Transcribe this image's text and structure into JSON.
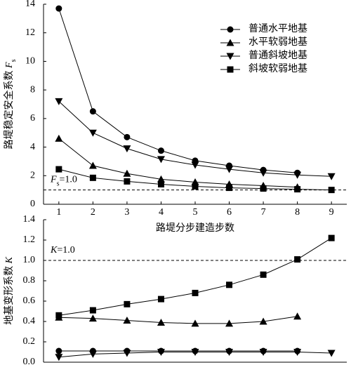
{
  "chart_data": [
    {
      "type": "line",
      "ylabel": [
        "路堤稳定安全系数 ",
        "F",
        "s"
      ],
      "xlabel": "路堤分步建造步数",
      "x": [
        1,
        2,
        3,
        4,
        5,
        6,
        7,
        8,
        9
      ],
      "xlim": [
        0.55,
        9.45
      ],
      "xticks": [
        1,
        2,
        3,
        4,
        5,
        6,
        7,
        8,
        9
      ],
      "ylim": [
        0,
        14
      ],
      "yticks": [
        0,
        2,
        4,
        6,
        8,
        10,
        12,
        14
      ],
      "legend": "upper-right",
      "reference_line": {
        "value": 1.0,
        "label": [
          "F",
          "s",
          "=1.0"
        ]
      },
      "series": [
        {
          "name": "普通水平地基",
          "color": "#000000",
          "marker": "circle",
          "values": [
            13.7,
            6.5,
            4.7,
            3.75,
            3.05,
            2.7,
            2.4,
            2.2,
            null
          ]
        },
        {
          "name": "水平软弱地基",
          "color": "#000000",
          "marker": "triangle-up",
          "values": [
            4.6,
            2.7,
            2.15,
            1.75,
            1.55,
            1.4,
            1.3,
            1.2,
            null
          ]
        },
        {
          "name": "普通斜坡地基",
          "color": "#000000",
          "marker": "triangle-down",
          "values": [
            7.2,
            5.0,
            3.9,
            3.15,
            2.75,
            2.45,
            2.2,
            2.05,
            1.95
          ]
        },
        {
          "name": "斜坡软弱地基",
          "color": "#000000",
          "marker": "square",
          "values": [
            2.45,
            1.85,
            1.6,
            1.4,
            1.25,
            1.15,
            1.1,
            1.05,
            1.0
          ]
        }
      ]
    },
    {
      "type": "line",
      "ylabel": [
        "地基变形系数 ",
        "K"
      ],
      "x": [
        1,
        2,
        3,
        4,
        5,
        6,
        7,
        8,
        9
      ],
      "xlim": [
        0.55,
        9.45
      ],
      "ylim": [
        0,
        1.4
      ],
      "yticks": [
        {
          "value": 0,
          "label": "0.0"
        },
        0.2,
        0.4,
        0.6,
        0.8,
        {
          "value": 1,
          "label": "1.0"
        },
        1.2,
        1.4
      ],
      "reference_line": {
        "value": 1.0,
        "label": [
          "K",
          "=1.0"
        ]
      },
      "series": [
        {
          "color": "#000000",
          "marker": "circle",
          "values": [
            0.11,
            0.11,
            0.11,
            0.11,
            0.11,
            0.11,
            0.11,
            0.11,
            null
          ]
        },
        {
          "color": "#000000",
          "marker": "triangle-up",
          "values": [
            0.44,
            0.43,
            0.41,
            0.39,
            0.38,
            0.38,
            0.4,
            0.45,
            null
          ]
        },
        {
          "color": "#000000",
          "marker": "triangle-down",
          "values": [
            0.05,
            0.08,
            0.09,
            0.1,
            0.1,
            0.1,
            0.1,
            0.1,
            0.09
          ]
        },
        {
          "color": "#000000",
          "marker": "square",
          "values": [
            0.46,
            0.51,
            0.57,
            0.62,
            0.68,
            0.76,
            0.86,
            1.01,
            1.22
          ]
        }
      ]
    }
  ]
}
